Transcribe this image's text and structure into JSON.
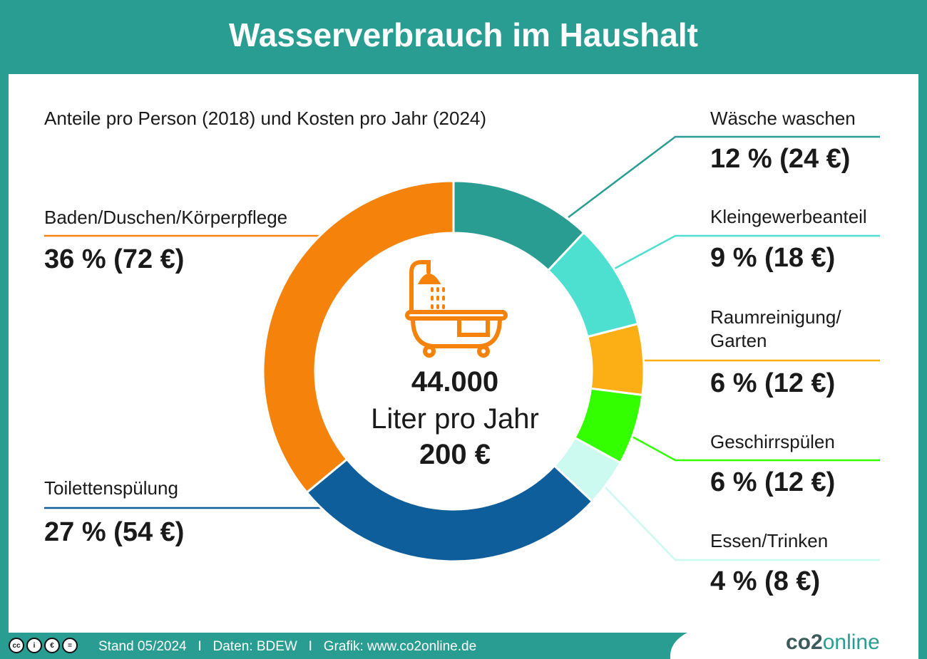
{
  "title": "Wasserverbrauch im Haushalt",
  "chart_data": {
    "type": "pie",
    "subtitle": "Anteile pro Person (2018) und Kosten pro Jahr (2024)",
    "center": {
      "amount": "44.000",
      "unit": "Liter pro Jahr",
      "cost": "200 €"
    },
    "slices": [
      {
        "name": "Wäsche waschen",
        "value": 12,
        "label": "12 % (24 €)",
        "color": "#2a9d92"
      },
      {
        "name": "Kleingewerbeanteil",
        "value": 9,
        "label": "9 % (18 €)",
        "color": "#4ddfd0"
      },
      {
        "name": "Raumreinigung/ Garten",
        "value": 6,
        "label": "6 % (12 €)",
        "color": "#fcae15"
      },
      {
        "name": "Geschirrspülen",
        "value": 6,
        "label": "6 % (12 €)",
        "color": "#33ff00"
      },
      {
        "name": "Essen/Trinken",
        "value": 4,
        "label": "4 % (8 €)",
        "color": "#ccfaf0"
      },
      {
        "name": "Toilettenspülung",
        "value": 27,
        "label": "27 % (54 €)",
        "color": "#0f5e9c"
      },
      {
        "name": "Baden/Duschen/Körperpflege",
        "value": 36,
        "label": "36 % (72 €)",
        "color": "#f5820a"
      }
    ]
  },
  "icon": "bathtub-shower-icon",
  "footer": {
    "text": "Stand 05/2024   I   Daten: BDEW   I   Grafik: www.co2online.de",
    "logo_a": "co2",
    "logo_b": "online",
    "license_icons": [
      "cc",
      "by",
      "nc",
      "nd"
    ]
  }
}
